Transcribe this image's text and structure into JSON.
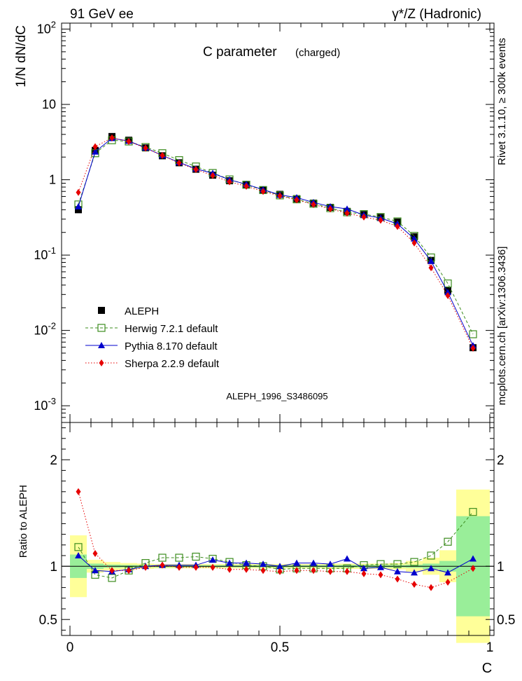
{
  "header": {
    "left": "91 GeV ee",
    "right": "γ*/Z (Hadronic)"
  },
  "side": {
    "top": "Rivet 3.1.10, ≥ 300k events",
    "bottom": "mcplots.cern.ch [arXiv:1306.3436]"
  },
  "chart_data": [
    {
      "type": "scatter",
      "title": "C parameter",
      "subtitle": "(charged)",
      "watermark": "ALEPH_1996_S3486095",
      "xlabel": "",
      "ylabel": "1/N dN/dC",
      "yscale": "log",
      "xlim": [
        -0.02,
        1.01
      ],
      "ylim": [
        0.0006,
        120
      ],
      "ytick_labels": [
        "10^-3",
        "10^-2",
        "10^-1",
        "1",
        "10",
        "10^2"
      ],
      "legend_position": "bottom-left",
      "x": [
        0.02,
        0.06,
        0.1,
        0.14,
        0.18,
        0.22,
        0.26,
        0.3,
        0.34,
        0.38,
        0.42,
        0.46,
        0.5,
        0.54,
        0.58,
        0.62,
        0.66,
        0.7,
        0.74,
        0.78,
        0.82,
        0.86,
        0.9,
        0.96
      ],
      "series": [
        {
          "name": "ALEPH",
          "color": "#000000",
          "marker": "square-filled",
          "values": [
            0.4,
            2.45,
            3.75,
            3.35,
            2.65,
            2.08,
            1.68,
            1.38,
            1.15,
            0.97,
            0.85,
            0.73,
            0.64,
            0.56,
            0.49,
            0.43,
            0.38,
            0.345,
            0.315,
            0.275,
            0.175,
            0.085,
            0.034,
            0.0059
          ]
        },
        {
          "name": "Herwig 7.2.1 default",
          "color": "#3c8c1e",
          "marker": "square-open",
          "line": "dashed",
          "values": [
            0.47,
            2.25,
            3.35,
            3.22,
            2.72,
            2.25,
            1.82,
            1.5,
            1.23,
            1.01,
            0.86,
            0.73,
            0.62,
            0.55,
            0.48,
            0.42,
            0.37,
            0.35,
            0.32,
            0.28,
            0.18,
            0.093,
            0.042,
            0.0089
          ]
        },
        {
          "name": "Pythia 8.170 default",
          "color": "#0000cc",
          "marker": "triangle",
          "line": "solid",
          "values": [
            0.44,
            2.35,
            3.55,
            3.27,
            2.65,
            2.1,
            1.7,
            1.4,
            1.22,
            1.0,
            0.87,
            0.74,
            0.63,
            0.58,
            0.5,
            0.44,
            0.41,
            0.34,
            0.31,
            0.26,
            0.165,
            0.083,
            0.032,
            0.0063
          ]
        },
        {
          "name": "Sherpa 2.2.9 default",
          "color": "#e60000",
          "marker": "diamond",
          "line": "dotted",
          "values": [
            0.68,
            2.75,
            3.6,
            3.23,
            2.63,
            2.1,
            1.67,
            1.37,
            1.14,
            0.94,
            0.82,
            0.7,
            0.61,
            0.54,
            0.47,
            0.41,
            0.36,
            0.32,
            0.29,
            0.24,
            0.145,
            0.068,
            0.029,
            0.0058
          ]
        }
      ]
    },
    {
      "type": "scatter",
      "title": "",
      "xlabel": "C",
      "ylabel": "Ratio to ALEPH",
      "xlim": [
        -0.02,
        1.01
      ],
      "ylim": [
        0.35,
        2.35
      ],
      "yticks": [
        0.5,
        1,
        2
      ],
      "ytick_labels": [
        "0.5",
        "1",
        "2"
      ],
      "xticks": [
        0,
        0.5,
        1
      ],
      "xtick_labels": [
        "0",
        "0.5",
        "1"
      ],
      "bands": {
        "bin_edges": [
          0.0,
          0.04,
          0.08,
          0.12,
          0.16,
          0.2,
          0.24,
          0.28,
          0.32,
          0.36,
          0.4,
          0.44,
          0.48,
          0.52,
          0.56,
          0.6,
          0.64,
          0.68,
          0.72,
          0.76,
          0.8,
          0.84,
          0.88,
          0.92,
          1.0
        ],
        "green_half": [
          0.11,
          0.025,
          0.015,
          0.012,
          0.01,
          0.01,
          0.01,
          0.01,
          0.01,
          0.01,
          0.01,
          0.01,
          0.01,
          0.01,
          0.01,
          0.01,
          0.012,
          0.012,
          0.012,
          0.012,
          0.015,
          0.025,
          0.05,
          0.47
        ],
        "yellow_half": [
          0.29,
          0.06,
          0.04,
          0.03,
          0.025,
          0.02,
          0.02,
          0.02,
          0.02,
          0.02,
          0.02,
          0.02,
          0.02,
          0.02,
          0.02,
          0.025,
          0.025,
          0.025,
          0.025,
          0.03,
          0.05,
          0.08,
          0.15,
          0.72
        ]
      },
      "series": [
        {
          "name": "Herwig 7.2.1 default",
          "color": "#3c8c1e",
          "marker": "square-open",
          "line": "dashed",
          "values": [
            1.18,
            0.92,
            0.89,
            0.96,
            1.03,
            1.08,
            1.08,
            1.09,
            1.07,
            1.04,
            1.01,
            1.0,
            0.97,
            0.98,
            0.98,
            0.98,
            0.98,
            1.01,
            1.02,
            1.02,
            1.04,
            1.1,
            1.23,
            1.51
          ]
        },
        {
          "name": "Pythia 8.170 default",
          "color": "#0000cc",
          "marker": "triangle",
          "line": "solid",
          "values": [
            1.1,
            0.96,
            0.95,
            0.97,
            1.0,
            1.01,
            1.01,
            1.01,
            1.06,
            1.03,
            1.03,
            1.02,
            1.0,
            1.03,
            1.03,
            1.02,
            1.07,
            0.98,
            0.99,
            0.95,
            0.94,
            0.98,
            0.94,
            1.07
          ]
        },
        {
          "name": "Sherpa 2.2.9 default",
          "color": "#e60000",
          "marker": "diamond",
          "line": "dotted",
          "values": [
            1.7,
            1.12,
            0.96,
            0.96,
            0.99,
            1.01,
            0.99,
            0.99,
            0.99,
            0.97,
            0.97,
            0.96,
            0.95,
            0.96,
            0.96,
            0.95,
            0.95,
            0.93,
            0.92,
            0.88,
            0.83,
            0.8,
            0.85,
            0.98
          ]
        }
      ]
    }
  ]
}
